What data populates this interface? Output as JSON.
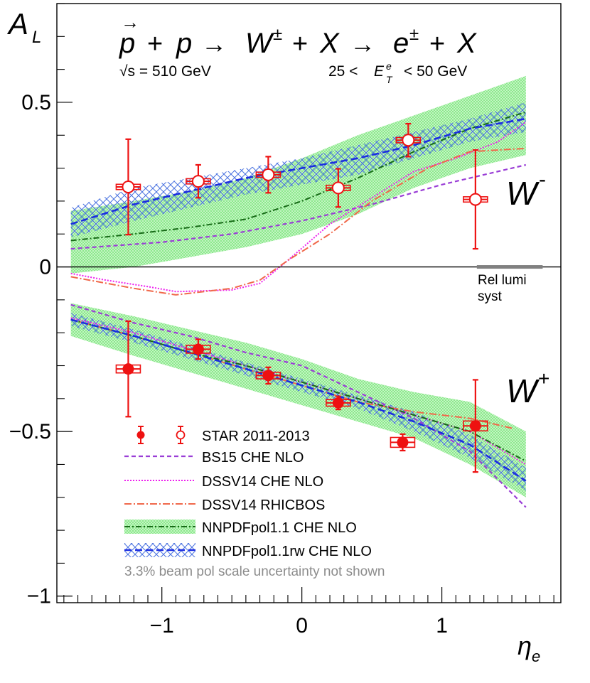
{
  "chart_data": {
    "type": "scatter",
    "title_parts": {
      "p_vec": "p",
      "plus1": "+",
      "p": "p",
      "arrow1": "→",
      "W": "W",
      "pm1": "±",
      "plus2": "+",
      "X1": "X",
      "arrow2": "→",
      "e": "e",
      "pm2": "±",
      "plus3": "+",
      "X2": "X"
    },
    "energy_label": "√s = 510 GeV",
    "et_cut": {
      "low": "25 <",
      "var": "E",
      "sub": "T",
      "sup": "e",
      "high": "< 50 GeV"
    },
    "ylabel": {
      "main": "A",
      "sub": "L"
    },
    "xlabel": {
      "main": "η",
      "sub": "e"
    },
    "xlim": [
      -1.75,
      1.85
    ],
    "ylim": [
      -1.02,
      0.8
    ],
    "x_ticks": [
      {
        "v": -1,
        "label": "−1"
      },
      {
        "v": 0,
        "label": "0"
      },
      {
        "v": 1,
        "label": "1"
      }
    ],
    "y_ticks": [
      {
        "v": 0.5,
        "label": "0.5"
      },
      {
        "v": 0,
        "label": "0"
      },
      {
        "v": -0.5,
        "label": "−0.5"
      },
      {
        "v": -1,
        "label": "−1"
      }
    ],
    "channel_labels": {
      "wminus": {
        "base": "W",
        "sup": "-"
      },
      "wplus": {
        "base": "W",
        "sup": "+"
      }
    },
    "rel_lumi": {
      "line1": "Rel lumi",
      "line2": "syst",
      "x_range": [
        1.25,
        1.72
      ]
    },
    "colors": {
      "star": "#ee1111",
      "bs15": "#9a3ed6",
      "dssv_che": "#ee22ee",
      "dssv_rhicbos": "#f0684a",
      "nnpdf_line": "#176b17",
      "nnpdf_band": "#88e888",
      "nnpdfrw_line": "#1b2de0",
      "nnpdfrw_band": "#4a72e0",
      "syst": "#808080",
      "note": "#8c8c8c"
    },
    "legend": [
      {
        "key": "star",
        "label": "STAR 2011-2013"
      },
      {
        "key": "bs15",
        "label": "BS15 CHE NLO"
      },
      {
        "key": "dssv_che",
        "label": "DSSV14 CHE NLO"
      },
      {
        "key": "dssv_rhicbos",
        "label": "DSSV14 RHICBOS"
      },
      {
        "key": "nnpdf",
        "label": "NNPDFpol1.1 CHE NLO"
      },
      {
        "key": "nnpdfrw",
        "label": "NNPDFpol1.1rw CHE NLO"
      }
    ],
    "note": "3.3% beam pol scale uncertainty not shown",
    "star_wminus": [
      {
        "x": -1.24,
        "y": 0.243,
        "err": 0.145,
        "sys": 0.008
      },
      {
        "x": -0.74,
        "y": 0.26,
        "err": 0.05,
        "sys": 0.008
      },
      {
        "x": -0.24,
        "y": 0.28,
        "err": 0.055,
        "sys": 0.008
      },
      {
        "x": 0.26,
        "y": 0.24,
        "err": 0.058,
        "sys": 0.008
      },
      {
        "x": 0.76,
        "y": 0.385,
        "err": 0.05,
        "sys": 0.008
      },
      {
        "x": 1.24,
        "y": 0.205,
        "err": 0.15,
        "sys": 0.008
      }
    ],
    "star_wplus": [
      {
        "x": -1.24,
        "y": -0.31,
        "err": 0.145,
        "sys": 0.012
      },
      {
        "x": -0.74,
        "y": -0.25,
        "err": 0.03,
        "sys": 0.012
      },
      {
        "x": -0.24,
        "y": -0.33,
        "err": 0.025,
        "sys": 0.01
      },
      {
        "x": 0.26,
        "y": -0.413,
        "err": 0.02,
        "sys": 0.01
      },
      {
        "x": 0.72,
        "y": -0.533,
        "err": 0.025,
        "sys": 0.015
      },
      {
        "x": 1.24,
        "y": -0.483,
        "err": 0.14,
        "sys": 0.015
      }
    ],
    "curves_wminus": {
      "bs15": {
        "x": [
          -1.65,
          -1.0,
          -0.5,
          0.0,
          0.5,
          1.0,
          1.6
        ],
        "y": [
          0.055,
          0.075,
          0.1,
          0.14,
          0.19,
          0.25,
          0.31
        ]
      },
      "dssv_che": {
        "x": [
          -1.65,
          -1.4,
          -1.1,
          -0.9,
          -0.5,
          -0.3,
          -0.1,
          0.2,
          0.5,
          0.8,
          1.1,
          1.4,
          1.6
        ],
        "y": [
          -0.02,
          -0.04,
          -0.06,
          -0.075,
          -0.07,
          -0.05,
          0.02,
          0.13,
          0.21,
          0.29,
          0.33,
          0.38,
          0.44
        ]
      },
      "dssv_rhicbos": {
        "x": [
          -1.65,
          -1.2,
          -0.9,
          -0.5,
          -0.3,
          -0.1,
          0.2,
          0.5,
          0.9,
          1.2,
          1.6
        ],
        "y": [
          -0.03,
          -0.065,
          -0.085,
          -0.065,
          -0.04,
          0.02,
          0.1,
          0.2,
          0.3,
          0.35,
          0.36
        ]
      },
      "nnpdf_center": {
        "x": [
          -1.65,
          -1.2,
          -0.8,
          -0.4,
          0.0,
          0.4,
          0.8,
          1.2,
          1.6
        ],
        "y": [
          0.08,
          0.1,
          0.12,
          0.145,
          0.2,
          0.27,
          0.35,
          0.42,
          0.47
        ]
      },
      "nnpdf_upper": {
        "x": [
          -1.65,
          -1.2,
          -0.8,
          -0.4,
          0.0,
          0.4,
          0.8,
          1.2,
          1.6
        ],
        "y": [
          0.17,
          0.2,
          0.23,
          0.27,
          0.33,
          0.4,
          0.46,
          0.52,
          0.58
        ]
      },
      "nnpdf_lower": {
        "x": [
          -1.65,
          -1.2,
          -0.8,
          -0.4,
          0.0,
          0.4,
          0.8,
          1.2,
          1.6
        ],
        "y": [
          -0.02,
          0.0,
          0.03,
          0.06,
          0.1,
          0.16,
          0.24,
          0.3,
          0.34
        ]
      },
      "nnpdfrw_center": {
        "x": [
          -1.65,
          -1.2,
          -0.8,
          -0.4,
          0.0,
          0.4,
          0.8,
          1.2,
          1.6
        ],
        "y": [
          0.13,
          0.19,
          0.23,
          0.27,
          0.3,
          0.33,
          0.37,
          0.42,
          0.45
        ]
      },
      "nnpdfrw_upper": {
        "x": [
          -1.65,
          -1.2,
          -0.8,
          -0.4,
          0.0,
          0.4,
          0.8,
          1.2,
          1.6
        ],
        "y": [
          0.18,
          0.24,
          0.27,
          0.3,
          0.33,
          0.37,
          0.41,
          0.45,
          0.5
        ]
      },
      "nnpdfrw_lower": {
        "x": [
          -1.65,
          -1.2,
          -0.8,
          -0.4,
          0.0,
          0.4,
          0.8,
          1.2,
          1.6
        ],
        "y": [
          0.09,
          0.14,
          0.18,
          0.22,
          0.25,
          0.28,
          0.33,
          0.38,
          0.41
        ]
      }
    },
    "curves_wplus": {
      "bs15": {
        "x": [
          -1.65,
          -1.2,
          -0.8,
          -0.4,
          0.0,
          0.4,
          0.8,
          1.2,
          1.6
        ],
        "y": [
          -0.115,
          -0.17,
          -0.21,
          -0.26,
          -0.3,
          -0.38,
          -0.46,
          -0.56,
          -0.73
        ]
      },
      "dssv_che": {
        "x": [
          -1.65,
          -1.2,
          -0.8,
          -0.4,
          0.0,
          0.4,
          0.8,
          1.2,
          1.6
        ],
        "y": [
          -0.155,
          -0.2,
          -0.25,
          -0.3,
          -0.35,
          -0.4,
          -0.45,
          -0.5,
          -0.6
        ]
      },
      "dssv_rhicbos": {
        "x": [
          -1.65,
          -1.2,
          -0.8,
          -0.4,
          0.0,
          0.4,
          0.8,
          1.2,
          1.5
        ],
        "y": [
          -0.16,
          -0.21,
          -0.26,
          -0.31,
          -0.36,
          -0.41,
          -0.44,
          -0.46,
          -0.49
        ]
      },
      "nnpdf_center": {
        "x": [
          -1.65,
          -1.2,
          -0.8,
          -0.4,
          0.0,
          0.4,
          0.8,
          1.2,
          1.6
        ],
        "y": [
          -0.16,
          -0.21,
          -0.26,
          -0.3,
          -0.35,
          -0.4,
          -0.45,
          -0.5,
          -0.59
        ]
      },
      "nnpdf_upper": {
        "x": [
          -1.65,
          -1.2,
          -0.8,
          -0.4,
          0.0,
          0.4,
          0.8,
          1.2,
          1.6
        ],
        "y": [
          -0.11,
          -0.15,
          -0.19,
          -0.23,
          -0.28,
          -0.34,
          -0.38,
          -0.41,
          -0.5
        ]
      },
      "nnpdf_lower": {
        "x": [
          -1.65,
          -1.2,
          -0.8,
          -0.4,
          0.0,
          0.4,
          0.8,
          1.2,
          1.6
        ],
        "y": [
          -0.21,
          -0.27,
          -0.32,
          -0.37,
          -0.42,
          -0.47,
          -0.52,
          -0.6,
          -0.7
        ]
      },
      "nnpdfrw_center": {
        "x": [
          -1.65,
          -1.2,
          -0.8,
          -0.4,
          0.0,
          0.4,
          0.8,
          1.2,
          1.6
        ],
        "y": [
          -0.16,
          -0.21,
          -0.26,
          -0.31,
          -0.36,
          -0.41,
          -0.47,
          -0.54,
          -0.65
        ]
      },
      "nnpdfrw_upper": {
        "x": [
          -1.65,
          -1.2,
          -0.8,
          -0.4,
          0.0,
          0.4,
          0.8,
          1.2,
          1.6
        ],
        "y": [
          -0.14,
          -0.19,
          -0.24,
          -0.29,
          -0.34,
          -0.39,
          -0.44,
          -0.51,
          -0.61
        ]
      },
      "nnpdfrw_lower": {
        "x": [
          -1.65,
          -1.2,
          -0.8,
          -0.4,
          0.0,
          0.4,
          0.8,
          1.2,
          1.6
        ],
        "y": [
          -0.18,
          -0.23,
          -0.28,
          -0.33,
          -0.38,
          -0.43,
          -0.5,
          -0.58,
          -0.68
        ]
      }
    }
  }
}
